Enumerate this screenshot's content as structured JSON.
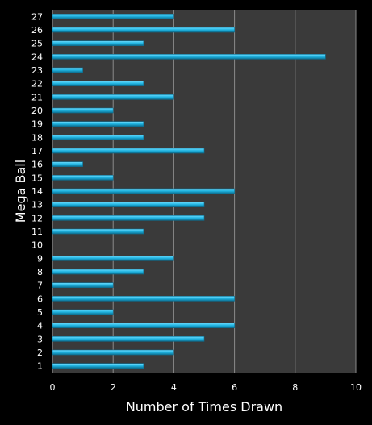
{
  "chart_data": {
    "type": "bar",
    "orientation": "horizontal",
    "title": "",
    "xlabel": "Number of Times Drawn",
    "ylabel": "Mega Ball",
    "xlim": [
      0,
      10
    ],
    "x_ticks": [
      0,
      2,
      4,
      6,
      8,
      10
    ],
    "grid": "vertical lines",
    "legend": "none",
    "categories": [
      "1",
      "2",
      "3",
      "4",
      "5",
      "6",
      "7",
      "8",
      "9",
      "10",
      "11",
      "12",
      "13",
      "14",
      "15",
      "16",
      "17",
      "18",
      "19",
      "20",
      "21",
      "22",
      "23",
      "24",
      "25",
      "26",
      "27"
    ],
    "values": [
      3,
      4,
      5,
      6,
      2,
      6,
      2,
      3,
      4,
      0,
      3,
      5,
      5,
      6,
      2,
      1,
      5,
      3,
      3,
      2,
      4,
      3,
      1,
      9,
      3,
      6,
      4
    ],
    "colors": {
      "background": "#000000",
      "plot_area": "#3a3a3a",
      "gridline": "#8a8a8a",
      "bar_fill": "#1fb3e0",
      "bar_highlight": "#6fdcff",
      "bar_shadow": "#0d6e90",
      "text": "#ffffff"
    }
  }
}
